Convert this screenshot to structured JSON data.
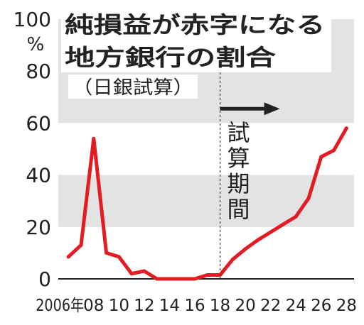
{
  "chart_data": {
    "type": "line",
    "title": "純損益が赤字になる地方銀行の割合",
    "subtitle": "（日銀試算）",
    "ylabel": "%",
    "ylim": [
      0,
      100
    ],
    "xlim": [
      2005.2,
      2028.6
    ],
    "yticks": [
      0,
      20,
      40,
      60,
      80,
      100
    ],
    "xtick_labels": [
      {
        "x": 2006,
        "label": "2006年"
      },
      {
        "x": 2008,
        "label": "08"
      },
      {
        "x": 2010,
        "label": "10"
      },
      {
        "x": 2012,
        "label": "12"
      },
      {
        "x": 2014,
        "label": "14"
      },
      {
        "x": 2016,
        "label": "16"
      },
      {
        "x": 2018,
        "label": "18"
      },
      {
        "x": 2020,
        "label": "20"
      },
      {
        "x": 2022,
        "label": "22"
      },
      {
        "x": 2024,
        "label": "24"
      },
      {
        "x": 2026,
        "label": "26"
      },
      {
        "x": 2028,
        "label": "28"
      }
    ],
    "series": [
      {
        "x": [
          2006,
          2007,
          2008,
          2009,
          2010,
          2011,
          2012,
          2013,
          2014,
          2015,
          2016,
          2017,
          2018,
          2019,
          2020,
          2021,
          2022,
          2023,
          2024,
          2025,
          2026,
          2027,
          2028
        ],
        "values": [
          8.5,
          13,
          54,
          10,
          8.5,
          2,
          3,
          0,
          0,
          0,
          0,
          1.5,
          1.5,
          7.5,
          11.5,
          15,
          18,
          21,
          24,
          31,
          47,
          49.5,
          58
        ]
      }
    ],
    "forecast_start": 2018,
    "annotation": "試算期間",
    "grid": "alternating horizontal bands",
    "colors": {
      "line": "#e31b23",
      "band": "#e3e3e3",
      "arrow": "#222222"
    }
  }
}
